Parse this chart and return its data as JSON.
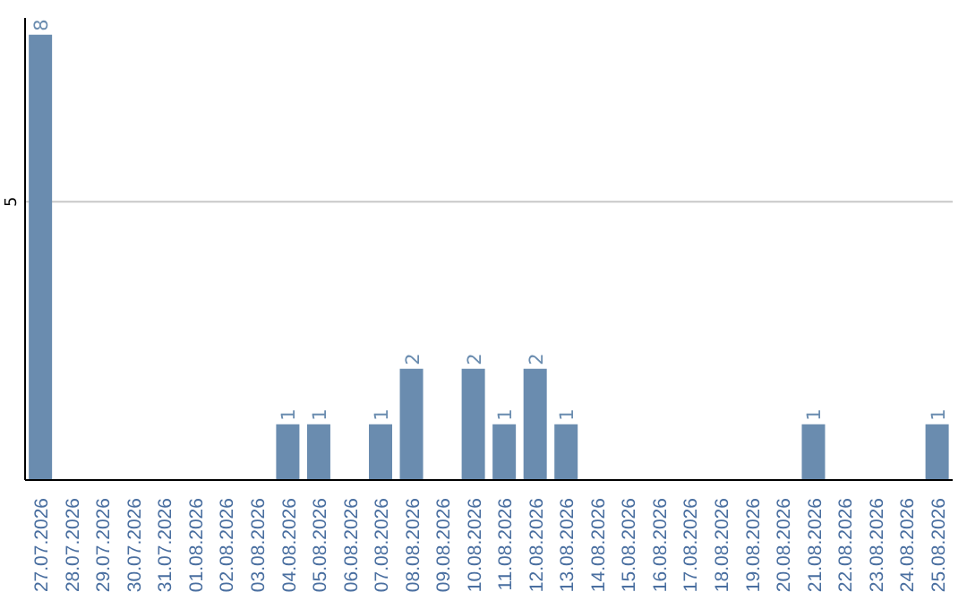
{
  "chart_data": {
    "type": "bar",
    "categories": [
      "27.07.2026",
      "28.07.2026",
      "29.07.2026",
      "30.07.2026",
      "31.07.2026",
      "01.08.2026",
      "02.08.2026",
      "03.08.2026",
      "04.08.2026",
      "05.08.2026",
      "06.08.2026",
      "07.08.2026",
      "08.08.2026",
      "09.08.2026",
      "10.08.2026",
      "11.08.2026",
      "12.08.2026",
      "13.08.2026",
      "14.08.2026",
      "15.08.2026",
      "16.08.2026",
      "17.08.2026",
      "18.08.2026",
      "19.08.2026",
      "20.08.2026",
      "21.08.2026",
      "22.08.2026",
      "23.08.2026",
      "24.08.2026",
      "25.08.2026"
    ],
    "values": [
      8,
      0,
      0,
      0,
      0,
      0,
      0,
      0,
      1,
      1,
      0,
      1,
      2,
      0,
      2,
      1,
      2,
      1,
      0,
      0,
      0,
      0,
      0,
      0,
      0,
      1,
      0,
      0,
      0,
      1
    ],
    "value_labels": [
      "8",
      null,
      null,
      null,
      null,
      null,
      null,
      null,
      "1",
      "1",
      null,
      "1",
      "2",
      null,
      "2",
      "1",
      "2",
      "1",
      null,
      null,
      null,
      null,
      null,
      null,
      null,
      "1",
      null,
      null,
      null,
      "1"
    ],
    "color": "#6a8caf",
    "ylim": [
      0,
      8.3
    ],
    "yticks": [
      5
    ],
    "grid": "y",
    "legend": false
  }
}
